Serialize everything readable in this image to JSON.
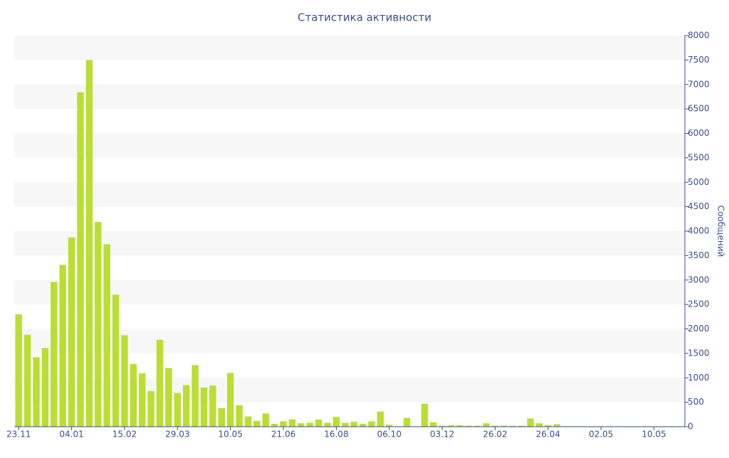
{
  "chart_data": {
    "type": "bar",
    "title": "Статистика активности",
    "y_axis_label": "Сообщений",
    "categories": [
      "23.11",
      null,
      null,
      null,
      null,
      null,
      "04.01",
      null,
      null,
      null,
      null,
      null,
      "15.02",
      null,
      null,
      null,
      null,
      null,
      "29.03",
      null,
      null,
      null,
      null,
      null,
      "10.05",
      null,
      null,
      null,
      null,
      null,
      "21.06",
      null,
      null,
      null,
      null,
      null,
      "16.08",
      null,
      null,
      null,
      null,
      null,
      "06.10",
      null,
      null,
      null,
      null,
      null,
      "03.12",
      null,
      null,
      null,
      null,
      null,
      "26.02",
      null,
      null,
      null,
      null,
      null,
      "26.04",
      null,
      null,
      null,
      null,
      null,
      "02.05",
      null,
      null,
      null,
      null,
      null,
      "10.05",
      null,
      null,
      null
    ],
    "values": [
      2300,
      1880,
      1420,
      1610,
      2960,
      3310,
      3870,
      6840,
      7500,
      4190,
      3730,
      2700,
      1870,
      1280,
      1090,
      730,
      1780,
      1200,
      690,
      850,
      1260,
      800,
      840,
      380,
      1100,
      440,
      210,
      120,
      270,
      60,
      110,
      150,
      70,
      80,
      150,
      80,
      200,
      80,
      100,
      60,
      110,
      310,
      40,
      10,
      180,
      10,
      470,
      90,
      20,
      30,
      30,
      20,
      20,
      70,
      20,
      20,
      20,
      20,
      170,
      70,
      30,
      50,
      10,
      10,
      10,
      10,
      10,
      10,
      10,
      10,
      10,
      10,
      10,
      10,
      10,
      10
    ],
    "color": "#bade32",
    "ylim": [
      0,
      8000
    ],
    "yticks": [
      0,
      500,
      1000,
      1500,
      2000,
      2500,
      3000,
      3500,
      4000,
      4500,
      5000,
      5500,
      6000,
      6500,
      7000,
      7500,
      8000
    ],
    "y_axis_side": "right"
  }
}
